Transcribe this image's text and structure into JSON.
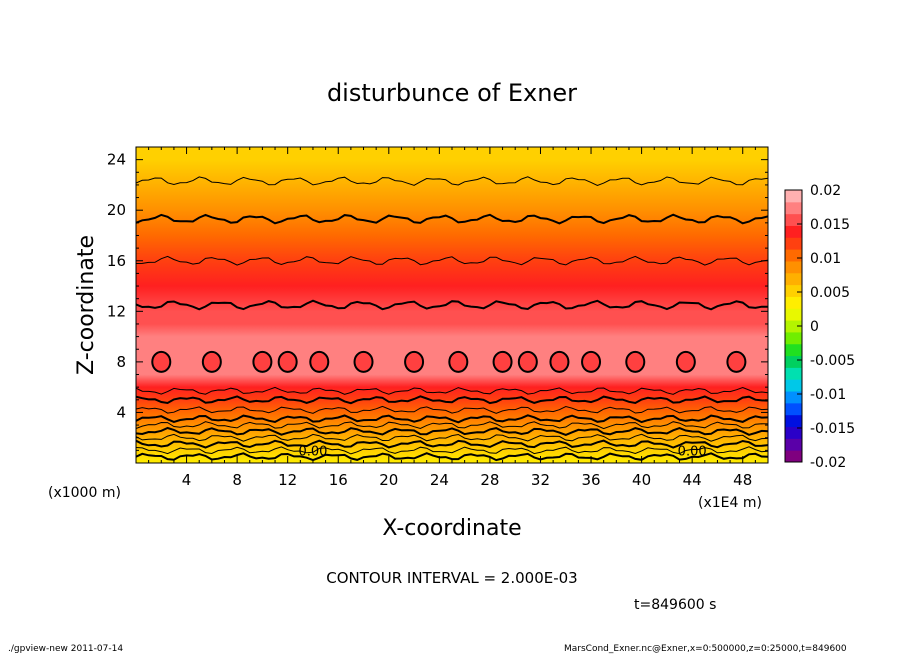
{
  "chart_data": {
    "type": "heatmap",
    "title": "disturbunce of Exner",
    "xlabel": "X-coordinate",
    "ylabel": "Z-coordinate",
    "x_unit": "(x1E4 m)",
    "y_unit": "(x1000 m)",
    "xlim": [
      0,
      50
    ],
    "ylim": [
      0,
      25
    ],
    "x_ticks": [
      4,
      8,
      12,
      16,
      20,
      24,
      28,
      32,
      36,
      40,
      44,
      48
    ],
    "y_ticks": [
      4,
      8,
      12,
      16,
      20,
      24
    ],
    "colorbar": {
      "ticks": [
        "0.02",
        "0.015",
        "0.01",
        "0.005",
        "0",
        "-0.005",
        "-0.01",
        "-0.015",
        "-0.02"
      ],
      "range": [
        -0.02,
        0.02
      ],
      "levels": [
        "#7f007f",
        "#5a00a8",
        "#2a00c8",
        "#0010e0",
        "#0050ff",
        "#0090ff",
        "#00c8e8",
        "#00e0b0",
        "#00d060",
        "#20e020",
        "#70ee00",
        "#b4f400",
        "#e8f800",
        "#ffee00",
        "#ffd000",
        "#ffb000",
        "#ff9000",
        "#ff6a00",
        "#ff4010",
        "#ff2020",
        "#ff5050",
        "#ff8080",
        "#ffb0b0"
      ]
    },
    "profile": {
      "z": [
        0,
        1,
        2,
        3,
        4,
        5,
        6,
        7,
        8,
        9,
        10,
        11,
        12,
        14,
        16,
        18,
        20,
        22,
        24,
        25
      ],
      "value": [
        0.004,
        0.0048,
        0.0062,
        0.008,
        0.0098,
        0.012,
        0.0145,
        0.017,
        0.0178,
        0.0175,
        0.017,
        0.0163,
        0.0155,
        0.0138,
        0.012,
        0.0102,
        0.0086,
        0.007,
        0.0056,
        0.005
      ]
    },
    "contour_interval": "CONTOUR INTERVAL = 2.000E-03",
    "contour_labels": [
      "0.00",
      "0.00"
    ]
  },
  "annotations": {
    "time": "t=849600 s",
    "footer_left": "./gpview-new   2011-07-14",
    "footer_right": "MarsCond_Exner.nc@Exner,x=0:500000,z=0:25000,t=849600"
  }
}
